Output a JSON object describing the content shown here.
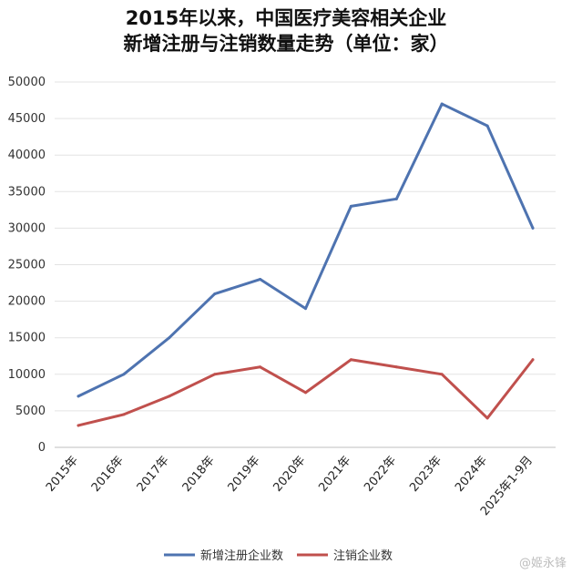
{
  "title_line1": "2015年以来，中国医疗美容相关企业",
  "title_line2": "新增注册与注销数量走势（单位：家）",
  "watermark": "@姬永锋",
  "chart_data": {
    "type": "line",
    "title": "2015年以来，中国医疗美容相关企业新增注册与注销数量走势（单位：家）",
    "categories": [
      "2015年",
      "2016年",
      "2017年",
      "2018年",
      "2019年",
      "2020年",
      "2021年",
      "2022年",
      "2023年",
      "2024年",
      "2025年1-9月"
    ],
    "ylim": [
      0,
      50000
    ],
    "yticks": [
      0,
      5000,
      10000,
      15000,
      20000,
      25000,
      30000,
      35000,
      40000,
      45000,
      50000
    ],
    "grid": true,
    "legend": "bottom",
    "series": [
      {
        "name": "新增注册企业数",
        "color": "#4e73b0",
        "values": [
          7000,
          10000,
          15000,
          21000,
          23000,
          19000,
          33000,
          34000,
          47000,
          44000,
          30000
        ]
      },
      {
        "name": "注销企业数",
        "color": "#c0504d",
        "values": [
          3000,
          4500,
          7000,
          10000,
          11000,
          7500,
          12000,
          11000,
          10000,
          4000,
          12000
        ]
      }
    ]
  }
}
